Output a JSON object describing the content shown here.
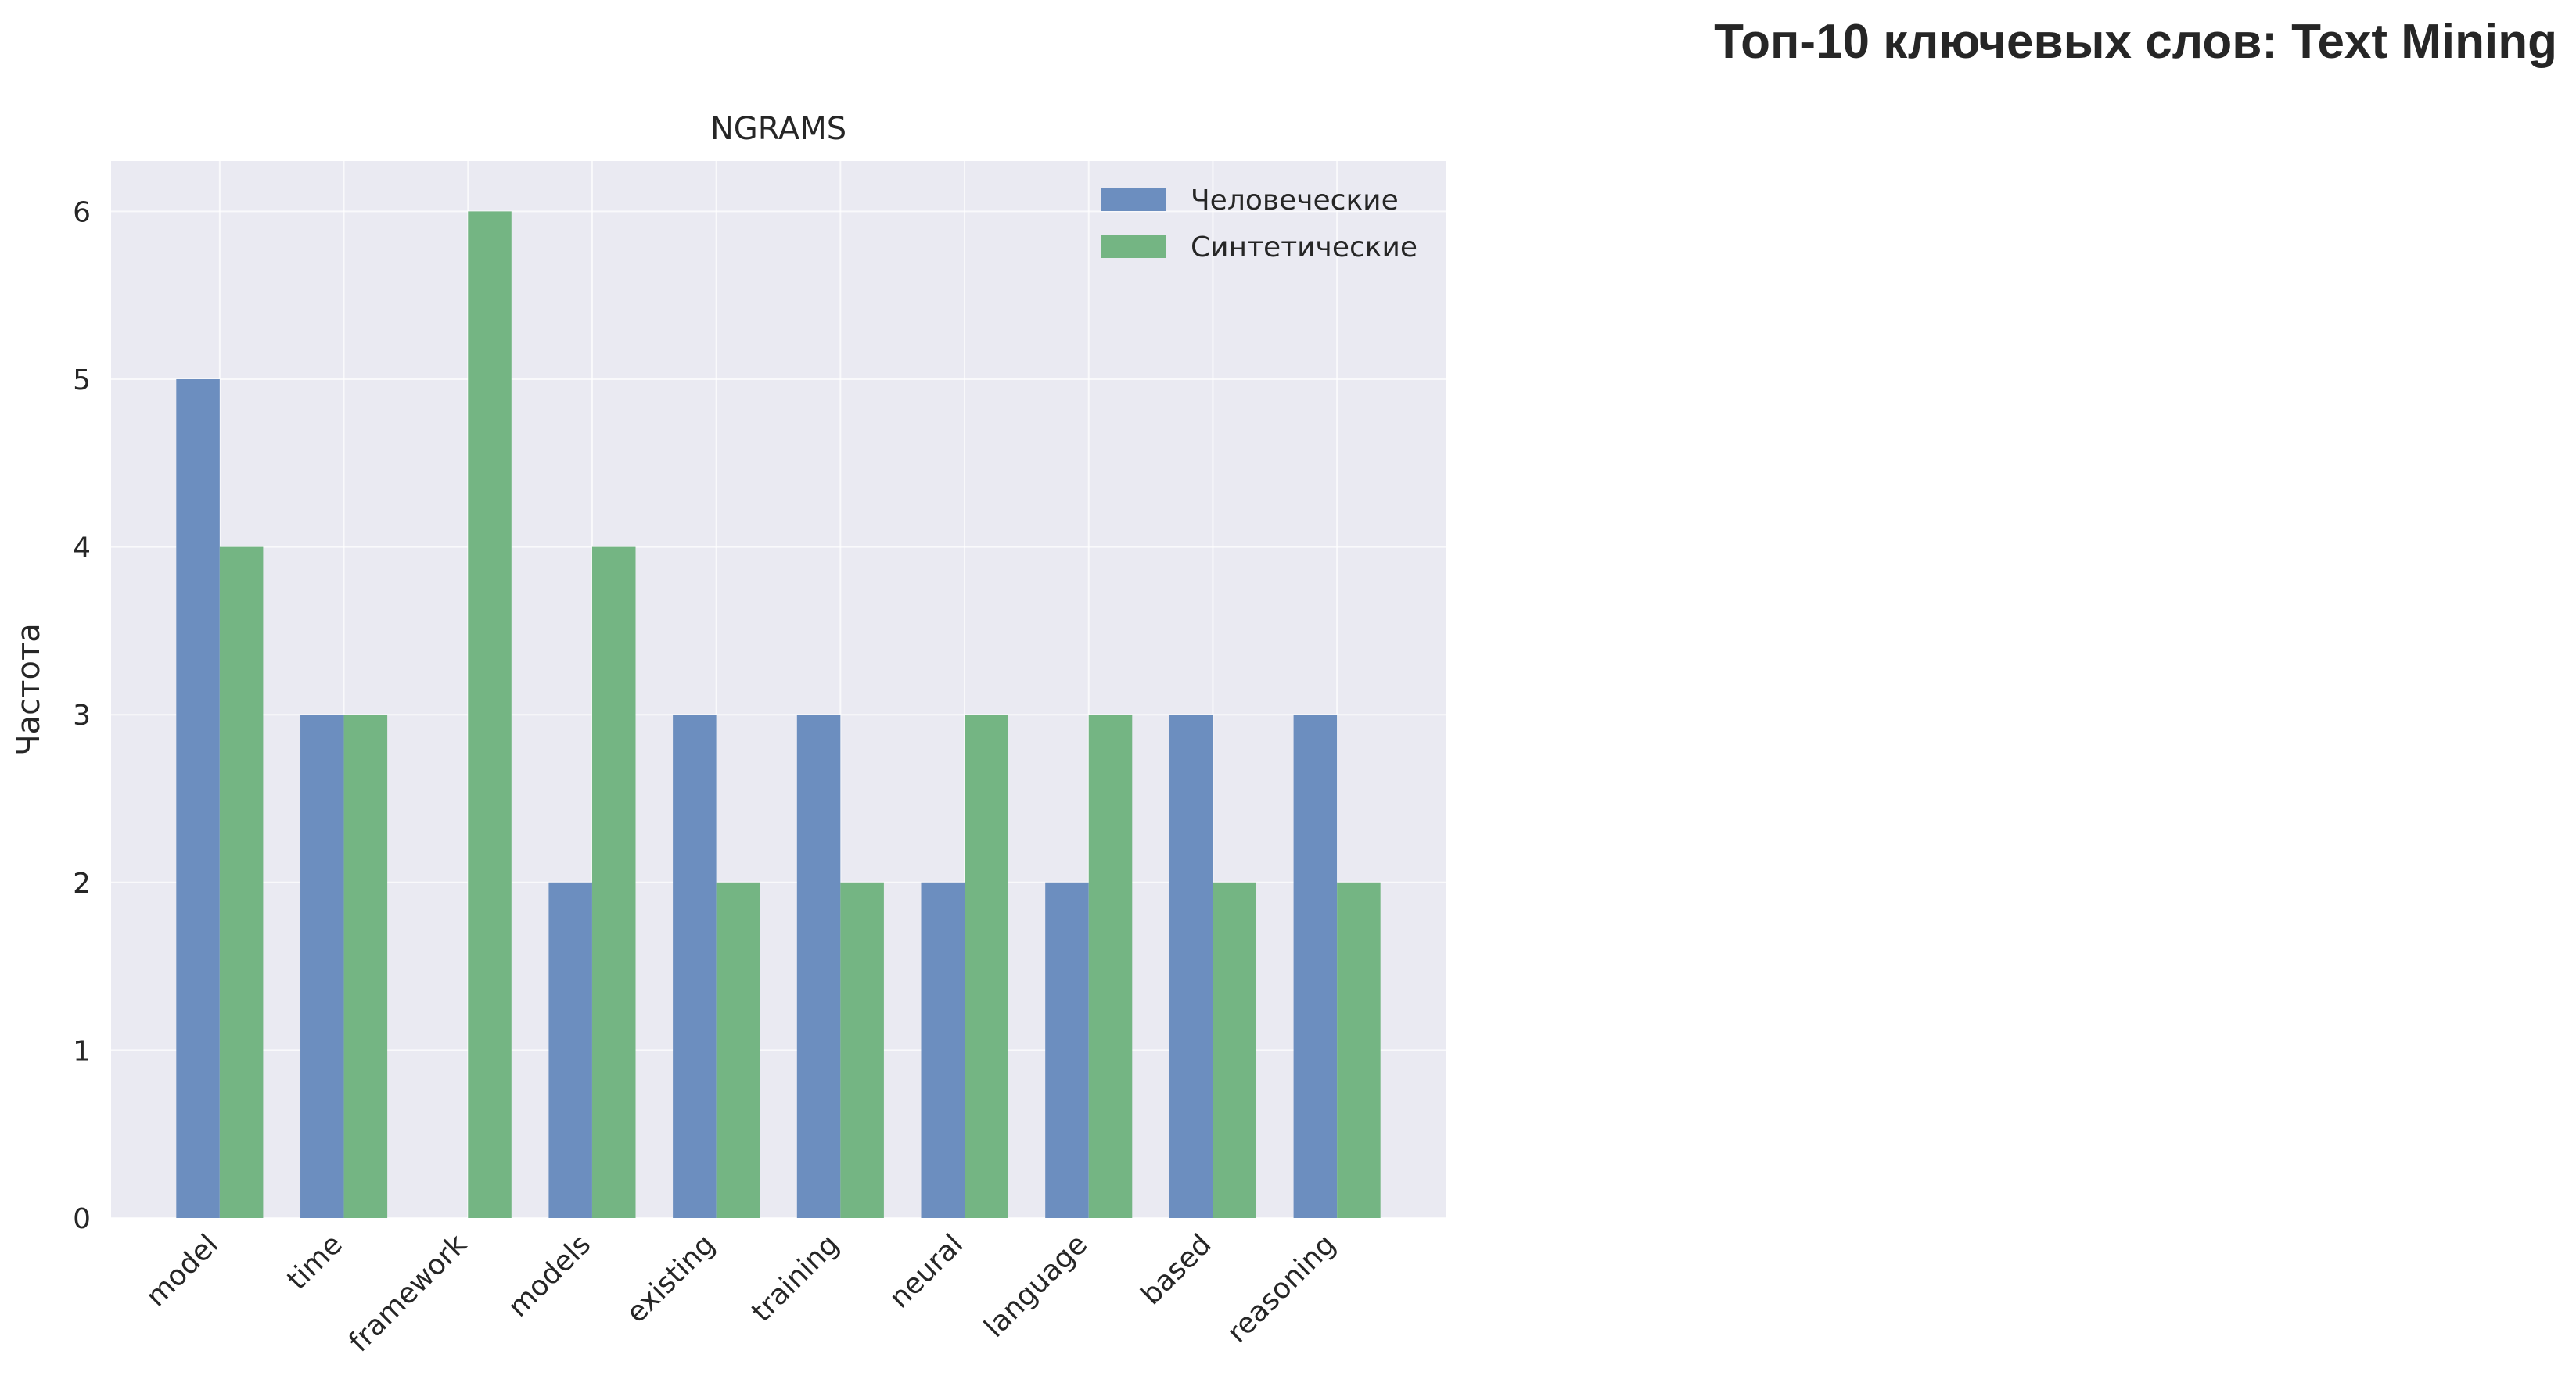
{
  "figure": {
    "suptitle": "Топ-10 ключевых слов: Text Mining"
  },
  "chart_data": {
    "type": "bar",
    "title": "NGRAMS",
    "xlabel": "",
    "ylabel": "Частота",
    "categories": [
      "model",
      "time",
      "framework",
      "models",
      "existing",
      "training",
      "neural",
      "language",
      "based",
      "reasoning"
    ],
    "series": [
      {
        "name": "Человеческие",
        "color": "#6c8ebf",
        "values": [
          5,
          3,
          0,
          2,
          3,
          3,
          2,
          2,
          3,
          3
        ]
      },
      {
        "name": "Синтетические",
        "color": "#74b583",
        "values": [
          4,
          3,
          6,
          4,
          2,
          2,
          3,
          3,
          2,
          2
        ]
      }
    ],
    "ylim": [
      0,
      6.3
    ],
    "yticks": [
      0,
      1,
      2,
      3,
      4,
      5,
      6
    ],
    "grid": true,
    "legend_position": "top-right",
    "plot_background": "#eaeaf2"
  }
}
